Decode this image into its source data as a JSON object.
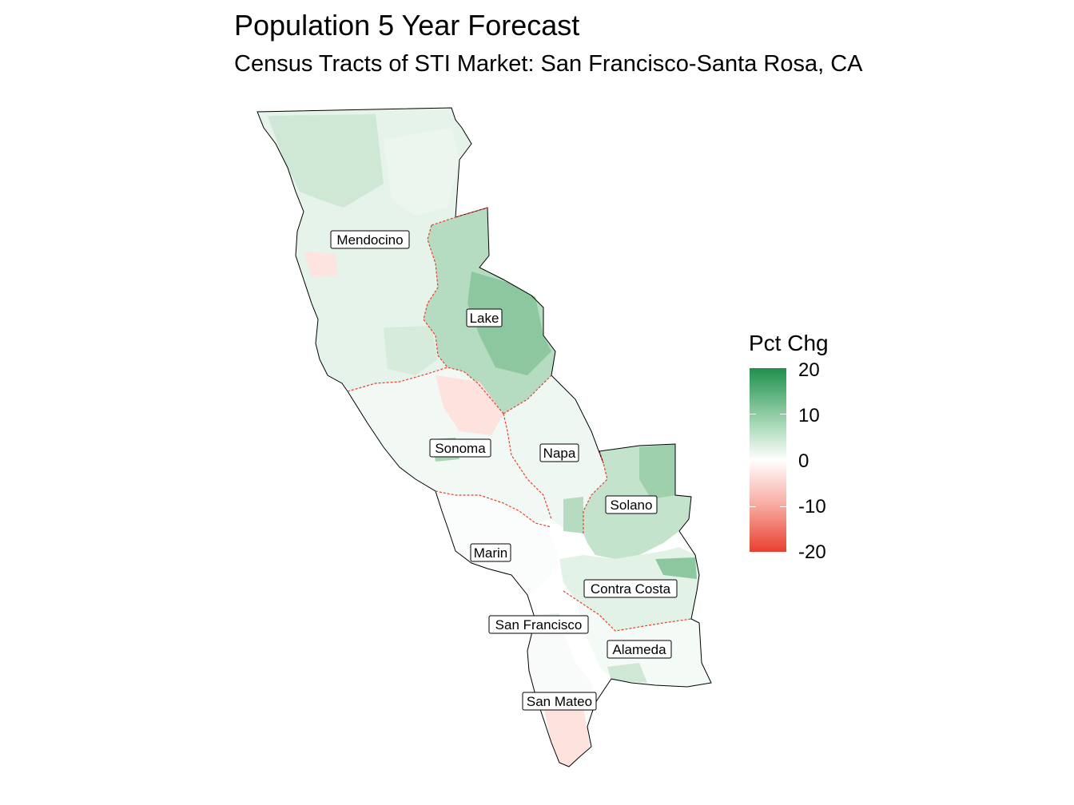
{
  "title": "Population 5 Year Forecast",
  "subtitle": "Census Tracts of STI Market: San Francisco-Santa Rosa, CA",
  "legend": {
    "title": "Pct Chg",
    "ticks": [
      "20",
      "10",
      "0",
      "-10",
      "-20"
    ],
    "range": [
      -20,
      20
    ],
    "colors": {
      "high": "#1f8f4e",
      "mid": "#ffffff",
      "low": "#e8402e"
    }
  },
  "counties": [
    {
      "name": "Mendocino",
      "value": 4
    },
    {
      "name": "Lake",
      "value": 12
    },
    {
      "name": "Sonoma",
      "value": 0
    },
    {
      "name": "Napa",
      "value": 2
    },
    {
      "name": "Solano",
      "value": 9
    },
    {
      "name": "Marin",
      "value": 0
    },
    {
      "name": "Contra Costa",
      "value": 5
    },
    {
      "name": "San Francisco",
      "value": 3
    },
    {
      "name": "Alameda",
      "value": 3
    },
    {
      "name": "San Mateo",
      "value": -4
    }
  ],
  "colors": {
    "market_boundary": "#e8402e",
    "outline": "#000000"
  }
}
